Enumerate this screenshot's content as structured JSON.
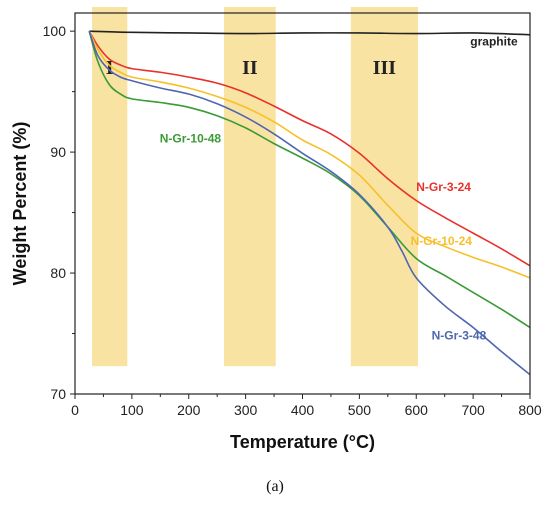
{
  "caption": "(a)",
  "chart_data": {
    "type": "line",
    "xlabel": "Temperature (°C)",
    "ylabel": "Weight Percent (%)",
    "xlim": [
      0,
      800
    ],
    "ylim": [
      70,
      101.5
    ],
    "xticks": [
      0,
      100,
      200,
      300,
      400,
      500,
      600,
      700,
      800
    ],
    "yticks": [
      70,
      80,
      90,
      100
    ],
    "grid": false,
    "legend": "inline labels",
    "regions": [
      {
        "label": "I",
        "x0": 30,
        "x1": 92,
        "ymax": 101.5,
        "ymin": 72.3
      },
      {
        "label": "II",
        "x0": 262,
        "x1": 353,
        "ymax": 101.5,
        "ymin": 72.3
      },
      {
        "label": "III",
        "x0": 485,
        "x1": 603,
        "ymax": 101.5,
        "ymin": 72.3
      }
    ],
    "region_color": "#f9e3a3",
    "series": [
      {
        "name": "graphite",
        "color": "#222222",
        "x": [
          25,
          100,
          200,
          300,
          400,
          500,
          600,
          700,
          800
        ],
        "y": [
          100,
          99.9,
          99.85,
          99.8,
          99.85,
          99.85,
          99.8,
          99.85,
          99.7
        ]
      },
      {
        "name": "N-Gr-3-24",
        "color": "#e8312a",
        "x": [
          25,
          40,
          60,
          80,
          100,
          150,
          200,
          250,
          300,
          350,
          400,
          450,
          500,
          550,
          600,
          650,
          700,
          750,
          800
        ],
        "y": [
          100,
          98.8,
          97.7,
          97.2,
          96.9,
          96.6,
          96.2,
          95.7,
          94.9,
          93.8,
          92.6,
          91.5,
          89.9,
          87.8,
          86.0,
          84.6,
          83.3,
          82.0,
          80.6
        ]
      },
      {
        "name": "N-Gr-10-24",
        "color": "#f7c02a",
        "x": [
          25,
          40,
          60,
          80,
          100,
          150,
          200,
          250,
          300,
          350,
          400,
          450,
          500,
          550,
          600,
          650,
          700,
          750,
          800
        ],
        "y": [
          100,
          98.5,
          97.2,
          96.6,
          96.2,
          95.8,
          95.3,
          94.6,
          93.7,
          92.5,
          91.0,
          89.8,
          88.1,
          85.6,
          83.3,
          82.2,
          81.3,
          80.5,
          79.6
        ]
      },
      {
        "name": "N-Gr-10-48",
        "color": "#3a9b35",
        "x": [
          25,
          40,
          60,
          80,
          100,
          150,
          200,
          250,
          300,
          350,
          400,
          450,
          500,
          550,
          600,
          650,
          700,
          750,
          800
        ],
        "y": [
          100,
          97.5,
          95.6,
          94.8,
          94.4,
          94.1,
          93.7,
          93.0,
          92.0,
          90.7,
          89.5,
          88.2,
          86.4,
          83.8,
          81.2,
          79.8,
          78.4,
          77.0,
          75.5
        ]
      },
      {
        "name": "N-Gr-3-48",
        "color": "#4f67b0",
        "x": [
          25,
          40,
          60,
          80,
          100,
          150,
          200,
          250,
          300,
          350,
          400,
          450,
          500,
          550,
          575,
          600,
          650,
          700,
          750,
          800
        ],
        "y": [
          100,
          98.0,
          96.8,
          96.2,
          95.9,
          95.3,
          94.8,
          94.0,
          92.9,
          91.5,
          89.9,
          88.4,
          86.5,
          83.8,
          81.8,
          79.6,
          77.3,
          75.5,
          73.5,
          71.6
        ]
      }
    ],
    "annotations": [
      {
        "text": "graphite",
        "series": "graphite",
        "x": 695,
        "y": 98.8
      },
      {
        "text": "N-Gr-3-24",
        "series": "N-Gr-3-24",
        "x": 600,
        "y": 86.8
      },
      {
        "text": "N-Gr-10-24",
        "series": "N-Gr-10-24",
        "x": 590,
        "y": 82.3
      },
      {
        "text": "N-Gr-10-48",
        "series": "N-Gr-10-48",
        "x": 149,
        "y": 90.8
      },
      {
        "text": "N-Gr-3-48",
        "series": "N-Gr-3-48",
        "x": 627,
        "y": 74.5
      }
    ]
  }
}
